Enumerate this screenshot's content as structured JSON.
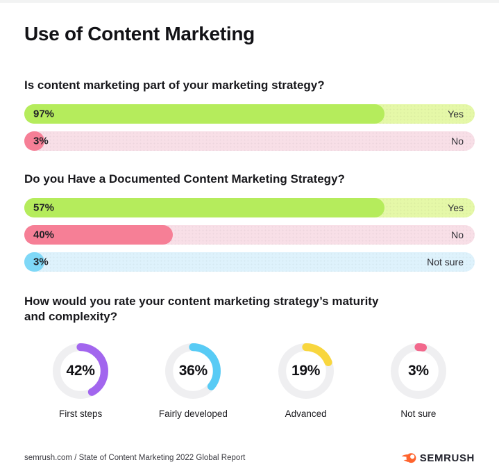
{
  "header": {
    "title": "Use of Content Marketing"
  },
  "footer": {
    "source": "semrush.com / State of Content Marketing 2022 Global Report",
    "brand": "SEMRUSH",
    "brand_color": "#ff642d"
  },
  "chart_data": [
    {
      "type": "bar",
      "orientation": "horizontal",
      "unit": "%",
      "title": "Is content marketing part of your marketing strategy?",
      "categories": [
        "Yes",
        "No"
      ],
      "values": [
        97,
        3
      ],
      "bars": [
        {
          "label": "Yes",
          "value": 97,
          "value_label": "97%",
          "fill_color": "#b5ec5c",
          "track_color": "#e5f8a8",
          "fill_width_pct": 80
        },
        {
          "label": "No",
          "value": 3,
          "value_label": "3%",
          "fill_color": "#f67f96",
          "track_color": "#f8dfe7",
          "fill_width_pct": 4.4
        }
      ]
    },
    {
      "type": "bar",
      "orientation": "horizontal",
      "unit": "%",
      "title": "Do you Have a Documented Content Marketing Strategy?",
      "categories": [
        "Yes",
        "No",
        "Not sure"
      ],
      "values": [
        57,
        40,
        3
      ],
      "bars": [
        {
          "label": "Yes",
          "value": 57,
          "value_label": "57%",
          "fill_color": "#b5ec5c",
          "track_color": "#e5f8a8",
          "fill_width_pct": 80
        },
        {
          "label": "No",
          "value": 40,
          "value_label": "40%",
          "fill_color": "#f67f96",
          "track_color": "#f8dfe7",
          "fill_width_pct": 33
        },
        {
          "label": "Not sure",
          "value": 3,
          "value_label": "3%",
          "fill_color": "#7fd8f7",
          "track_color": "#def2fc",
          "fill_width_pct": 4.4
        }
      ]
    },
    {
      "type": "donut",
      "unit": "%",
      "title_line1": "How would you rate your content marketing strategy’s maturity",
      "title_line2": "and complexity?",
      "track_color": "#efeff1",
      "categories": [
        "First steps",
        "Fairly developed",
        "Advanced",
        "Not sure"
      ],
      "values": [
        42,
        36,
        19,
        3
      ],
      "donuts": [
        {
          "label": "First steps",
          "value": 42,
          "value_label": "42%",
          "color": "#a266ee"
        },
        {
          "label": "Fairly developed",
          "value": 36,
          "value_label": "36%",
          "color": "#58cbf5"
        },
        {
          "label": "Advanced",
          "value": 19,
          "value_label": "19%",
          "color": "#f8d63e"
        },
        {
          "label": "Not sure",
          "value": 3,
          "value_label": "3%",
          "color": "#f2688c"
        }
      ]
    }
  ]
}
